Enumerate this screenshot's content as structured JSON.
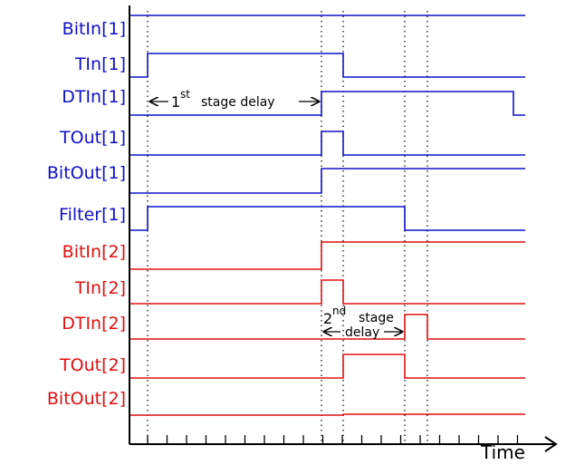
{
  "signals": [
    {
      "label": "BitIn[1]",
      "group": 1
    },
    {
      "label": "TIn[1]",
      "group": 1
    },
    {
      "label": "DTIn[1]",
      "group": 1
    },
    {
      "label": "TOut[1]",
      "group": 1
    },
    {
      "label": "BitOut[1]",
      "group": 1
    },
    {
      "label": "Filter[1]",
      "group": 1
    },
    {
      "label": "BitIn[2]",
      "group": 2
    },
    {
      "label": "TIn[2]",
      "group": 2
    },
    {
      "label": "DTIn[2]",
      "group": 2
    },
    {
      "label": "TOut[2]",
      "group": 2
    },
    {
      "label": "BitOut[2]",
      "group": 2
    }
  ],
  "annotations": {
    "first": {
      "number": "1",
      "ordinal": "st",
      "text": "stage delay"
    },
    "second": {
      "number": "2",
      "ordinal": "nd",
      "text": "stage",
      "text2": "delay"
    }
  },
  "x_axis_label": "Time"
}
